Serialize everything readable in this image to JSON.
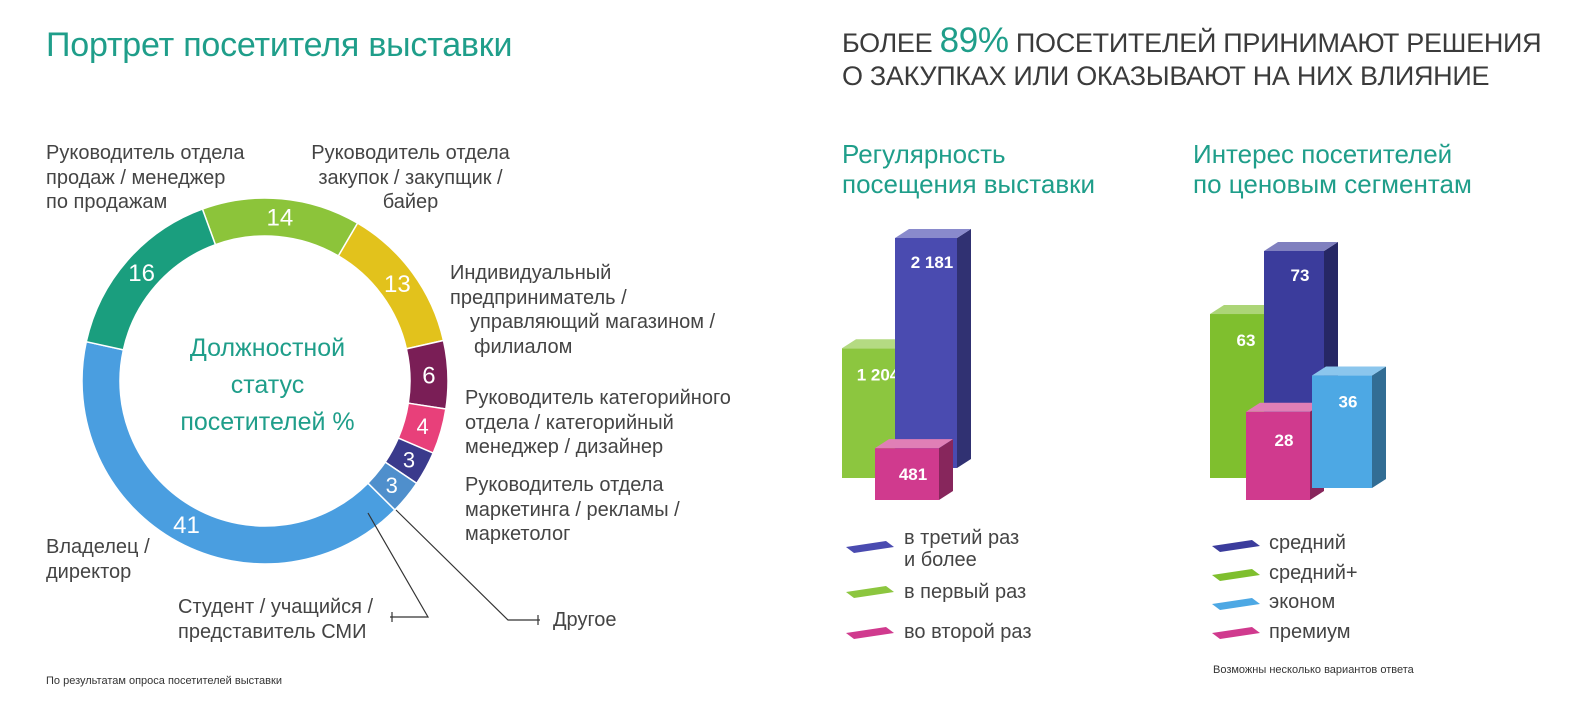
{
  "left_title": "Портрет посетителя выставки",
  "headline": {
    "pre": "БОЛЕЕ ",
    "accent": "89%",
    "post1": " ПОСЕТИТЕЛЕЙ ПРИНИМАЮТ РЕШЕНИЯ",
    "line2": "О ЗАКУПКАХ ИЛИ ОКАЗЫВАЮТ НА НИХ ВЛИЯНИЕ"
  },
  "donut": {
    "center": [
      "Должностной",
      "статус",
      "посетителей %"
    ],
    "labels": {
      "sales": [
        "Руководитель отдела",
        "продаж / менеджер",
        "по продажам"
      ],
      "purchase": [
        "Руководитель отдела",
        "закупок / закупщик /",
        "байер"
      ],
      "entrepreneur": [
        "Индивидуальный",
        "предприниматель /",
        "управляющий магазином /",
        "филиалом"
      ],
      "category": [
        "Руководитель категорийного",
        "отдела / категорийный",
        "менеджер / дизайнер"
      ],
      "marketing": [
        "Руководитель отдела",
        "маркетинга / рекламы /",
        "маркетолог"
      ],
      "owner": [
        "Владелец /",
        "директор"
      ],
      "student": [
        "Студент / учащийся /",
        "представитель СМИ"
      ],
      "other": [
        "Другое"
      ]
    }
  },
  "footnote_left": "По результатам опроса посетителей выставки",
  "regularity": {
    "title": [
      "Регулярность",
      "посещения выставки"
    ],
    "legend": [
      {
        "text": [
          "в третий раз",
          "и более"
        ],
        "color": "#4a4bb0"
      },
      {
        "text": [
          "в первый раз"
        ],
        "color": "#8cc63f"
      },
      {
        "text": [
          "во второй раз"
        ],
        "color": "#d03a8e"
      }
    ]
  },
  "interest": {
    "title": [
      "Интерес посетителей",
      "по ценовым сегментам"
    ],
    "legend": [
      {
        "text": [
          "средний"
        ],
        "color": "#3b3c9c"
      },
      {
        "text": [
          "средний+"
        ],
        "color": "#7fbf2e"
      },
      {
        "text": [
          "эконом"
        ],
        "color": "#4da8e4"
      },
      {
        "text": [
          "премиум"
        ],
        "color": "#d03a8e"
      }
    ],
    "note": "Возможны несколько вариантов ответа"
  },
  "chart_data": [
    {
      "type": "pie",
      "title": "Должностной статус посетителей %",
      "categories": [
        "Руководитель отдела закупок / закупщик / байер",
        "Индивидуальный предприниматель / управляющий магазином / филиалом",
        "Руководитель категорийного отдела / категорийный менеджер / дизайнер",
        "Руководитель отдела маркетинга / рекламы / маркетолог",
        "Другое",
        "Студент / учащийся / представитель СМИ",
        "Владелец / директор",
        "Руководитель отдела продаж / менеджер по продажам"
      ],
      "values": [
        14,
        13,
        6,
        4,
        3,
        3,
        41,
        16
      ],
      "value_labels": [
        "14",
        "13",
        "6",
        "4",
        "3",
        "3",
        "41",
        "16"
      ],
      "colors": [
        "#8cc43a",
        "#e2c21c",
        "#7a1e56",
        "#e8407a",
        "#3a3a8c",
        "#4f8fcc",
        "#4a9ee0",
        "#1a9e7e"
      ]
    },
    {
      "type": "bar",
      "title": "Регулярность посещения выставки",
      "categories": [
        "в первый раз",
        "в третий раз и более",
        "во второй раз"
      ],
      "values": [
        1204,
        2181,
        481
      ],
      "value_labels": [
        "1 204",
        "2 181",
        "481"
      ],
      "colors": [
        "#8cc63f",
        "#4a4bb0",
        "#d03a8e"
      ]
    },
    {
      "type": "bar",
      "title": "Интерес посетителей по ценовым сегментам",
      "categories": [
        "средний+",
        "средний",
        "премиум",
        "эконом"
      ],
      "values": [
        63,
        73,
        28,
        36
      ],
      "value_labels": [
        "63",
        "73",
        "28",
        "36"
      ],
      "colors": [
        "#7fbf2e",
        "#3b3c9c",
        "#d03a8e",
        "#4da8e4"
      ]
    }
  ]
}
